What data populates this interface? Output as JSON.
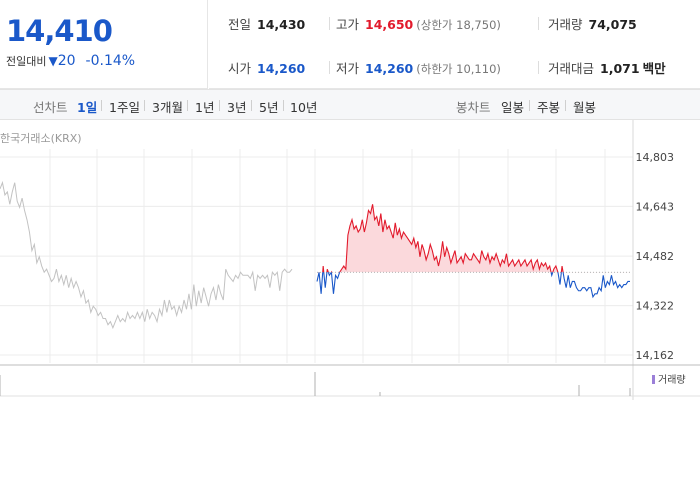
{
  "price": {
    "current": "14,410",
    "diff_label": "전일대비",
    "diff_icon": "down-triangle-icon",
    "diff_value": "20",
    "diff_percent": "-0.14%",
    "color_down": "#1a58c9",
    "color_up": "#e21a2c"
  },
  "stats": {
    "prev_close_label": "전일",
    "prev_close": "14,430",
    "high_label": "고가",
    "high": "14,650",
    "upper_limit": "(상한가 18,750)",
    "volume_label": "거래량",
    "volume": "74,075",
    "open_label": "시가",
    "open": "14,260",
    "low_label": "저가",
    "low": "14,260",
    "lower_limit": "(하한가 10,110)",
    "amount_label": "거래대금",
    "amount": "1,071",
    "amount_unit": "백만"
  },
  "period_bar": {
    "line_title": "선차트",
    "line_items": [
      "1일",
      "1주일",
      "3개월",
      "1년",
      "3년",
      "5년",
      "10년"
    ],
    "active": "1일",
    "candle_title": "봉차트",
    "candle_items": [
      "일봉",
      "주봉",
      "월봉"
    ]
  },
  "chart": {
    "source": "한국거래소(KRX)",
    "volume_legend": "거래량",
    "volume_color": "#9b7fd8"
  },
  "chart_data": {
    "type": "line",
    "title": "",
    "y_ticks": [
      14803,
      14643,
      14482,
      14322,
      14162
    ],
    "ylim": [
      14162,
      14803
    ],
    "baseline": 14430,
    "grid": true,
    "series": [
      {
        "values": [
          14700,
          14720,
          14680,
          14690,
          14650,
          14690,
          14720,
          14660,
          14640,
          14670,
          14630,
          14600,
          14560,
          14500,
          14520,
          14460,
          14480,
          14450,
          14430,
          14440,
          14420,
          14400,
          14410,
          14440,
          14400,
          14420,
          14390,
          14420,
          14380,
          14410,
          14380,
          14400,
          14380,
          14350,
          14370,
          14330,
          14340,
          14300,
          14320,
          14310,
          14290,
          14300,
          14280,
          14280,
          14260,
          14270,
          14250,
          14270,
          14290,
          14270,
          14280,
          14270,
          14300,
          14280,
          14290,
          14280,
          14300,
          14280,
          14300,
          14270,
          14310,
          14280,
          14300,
          14290,
          14270,
          14310,
          14290,
          14340,
          14300,
          14340,
          14310,
          14320,
          14290,
          14320,
          14300,
          14340,
          14310,
          14360,
          14310,
          14390,
          14320,
          14370,
          14330,
          14380,
          14350,
          14320,
          14360,
          14380,
          14340,
          14390,
          14360,
          14340,
          14440,
          14420,
          14410,
          14400,
          14420,
          14410,
          14430,
          14420,
          14420,
          14420,
          14410,
          14430,
          14370,
          14420,
          14410,
          14420,
          14410,
          14420,
          14380,
          14430,
          14420,
          14430,
          14370,
          14430,
          14440,
          14430,
          14430,
          14440
        ]
      },
      {
        "values": [
          14400,
          14430,
          14360,
          14450,
          14380,
          14440,
          14420,
          14430,
          14360,
          14420,
          14410,
          14430,
          14440,
          14450,
          14440,
          14550,
          14580,
          14600,
          14570,
          14580,
          14560,
          14570,
          14600,
          14560,
          14590,
          14630,
          14620,
          14650,
          14600,
          14610,
          14580,
          14620,
          14560,
          14600,
          14570,
          14580,
          14560,
          14540,
          14590,
          14550,
          14570,
          14540,
          14560,
          14550,
          14540,
          14530,
          14520,
          14540,
          14510,
          14530,
          14480,
          14520,
          14500,
          14470,
          14490,
          14520,
          14500,
          14470,
          14480,
          14450,
          14480,
          14530,
          14480,
          14510,
          14490,
          14460,
          14480,
          14500,
          14460,
          14470,
          14480,
          14460,
          14490,
          14480,
          14470,
          14470,
          14490,
          14480,
          14470,
          14460,
          14500,
          14480,
          14470,
          14490,
          14460,
          14480,
          14470,
          14490,
          14470,
          14450,
          14470,
          14460,
          14490,
          14450,
          14460,
          14470,
          14450,
          14460,
          14470,
          14450,
          14460,
          14470,
          14450,
          14460,
          14470,
          14440,
          14460,
          14470,
          14440,
          14460,
          14450,
          14460,
          14440,
          14450,
          14420,
          14440,
          14450,
          14430,
          14390,
          14450,
          14410,
          14380,
          14420,
          14380,
          14400,
          14400,
          14380,
          14370,
          14370,
          14380,
          14380,
          14370,
          14380,
          14380,
          14350,
          14360,
          14360,
          14380,
          14370,
          14420,
          14380,
          14400,
          14390,
          14420,
          14390,
          14400,
          14380,
          14390,
          14380,
          14390,
          14390,
          14400,
          14400
        ]
      }
    ]
  }
}
